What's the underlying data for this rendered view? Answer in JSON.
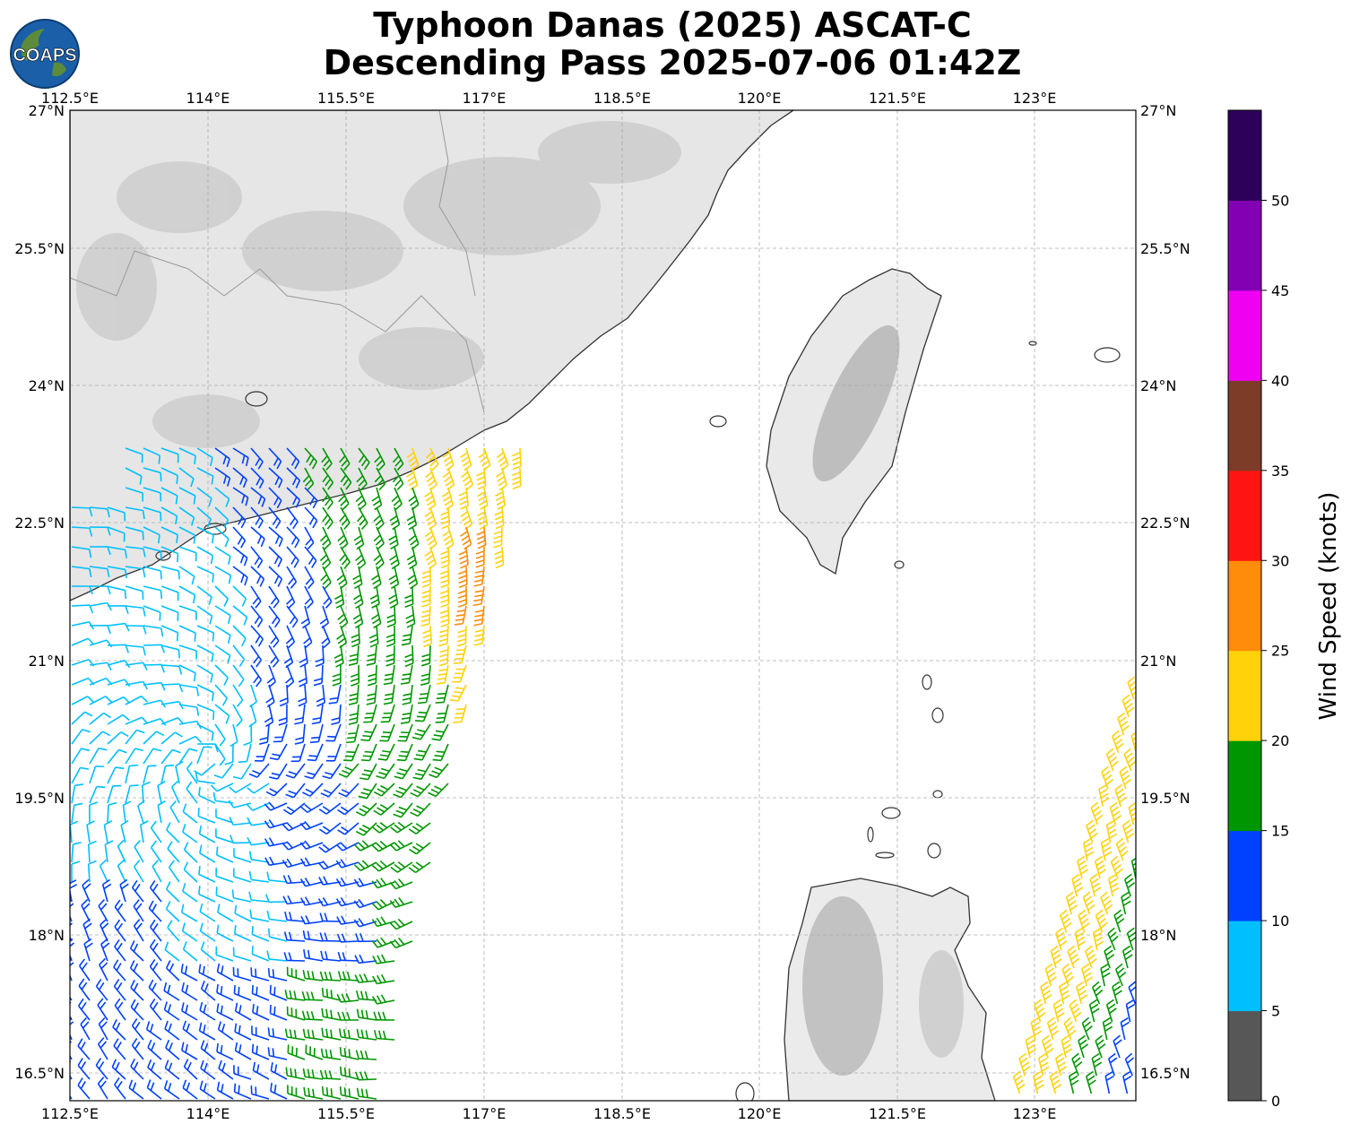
{
  "header": {
    "title_line1": "Typhoon Danas (2025) ASCAT-C",
    "title_line2": "Descending Pass 2025-07-06 01:42Z",
    "logo_text": "COAPS"
  },
  "map": {
    "lon_ticks": [
      "112.5°E",
      "114°E",
      "115.5°E",
      "117°E",
      "118.5°E",
      "120°E",
      "121.5°E",
      "123°E"
    ],
    "lat_ticks": [
      "27°N",
      "25.5°N",
      "24°N",
      "22.5°N",
      "21°N",
      "19.5°N",
      "18°N",
      "16.5°N"
    ]
  },
  "colorbar": {
    "label": "Wind Speed (knots)",
    "ticks": [
      "0",
      "5",
      "10",
      "15",
      "20",
      "25",
      "30",
      "35",
      "40",
      "45",
      "50"
    ],
    "colors": [
      "#575757",
      "#00bfff",
      "#0040ff",
      "#009600",
      "#ffd20a",
      "#ff8c0a",
      "#ff1414",
      "#7d3c28",
      "#f000f0",
      "#8200b4",
      "#2d005a"
    ]
  },
  "colors": {
    "coast": "#333333",
    "grid": "#aaaaaa",
    "land": "#e8e8e8"
  }
}
